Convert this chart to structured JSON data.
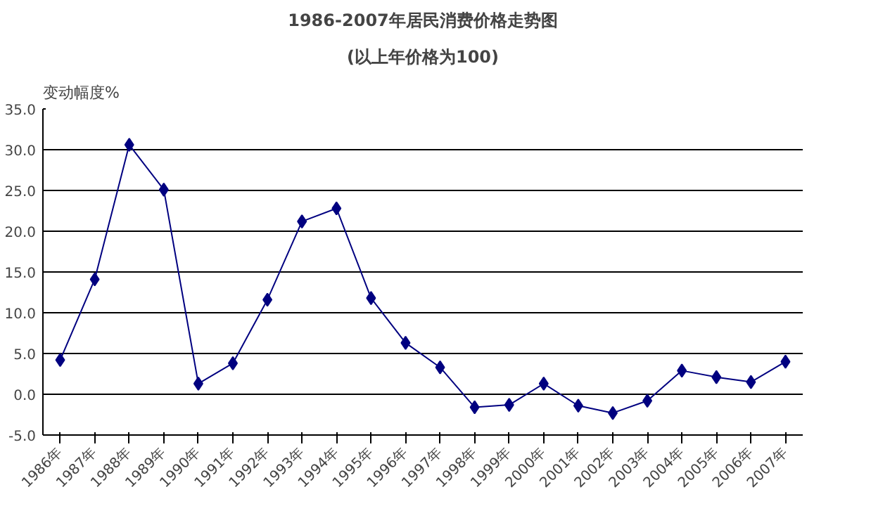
{
  "chart_data": {
    "type": "line",
    "title": "1986-2007年居民消费价格走势图",
    "subtitle": "(以上年价格为100)",
    "ylabel": "变动幅度%",
    "categories": [
      "1986年",
      "1987年",
      "1988年",
      "1989年",
      "1990年",
      "1991年",
      "1992年",
      "1993年",
      "1994年",
      "1995年",
      "1996年",
      "1997年",
      "1998年",
      "1999年",
      "2000年",
      "2001年",
      "2002年",
      "2003年",
      "2004年",
      "2005年",
      "2006年",
      "2007年"
    ],
    "series": [
      {
        "color": "#000080",
        "values": [
          4.2,
          14.1,
          30.6,
          25.1,
          1.3,
          3.8,
          11.6,
          21.2,
          22.8,
          11.8,
          6.3,
          3.3,
          -1.6,
          -1.3,
          1.3,
          -1.4,
          -2.3,
          -0.8,
          2.9,
          2.1,
          1.5,
          4.0
        ]
      }
    ],
    "ylim": [
      -5,
      35
    ],
    "yticks": [
      {
        "value": -5,
        "label": "-5.0"
      },
      {
        "value": 0,
        "label": "0.0"
      },
      {
        "value": 5,
        "label": "5.0"
      },
      {
        "value": 10,
        "label": "10.0"
      },
      {
        "value": 15,
        "label": "15.0"
      },
      {
        "value": 20,
        "label": "20.0"
      },
      {
        "value": 25,
        "label": "25.0"
      },
      {
        "value": 30,
        "label": "30.0"
      },
      {
        "value": 35,
        "label": "35.0"
      }
    ],
    "grid": "y",
    "marker": "diamond",
    "line_style": "solid"
  }
}
